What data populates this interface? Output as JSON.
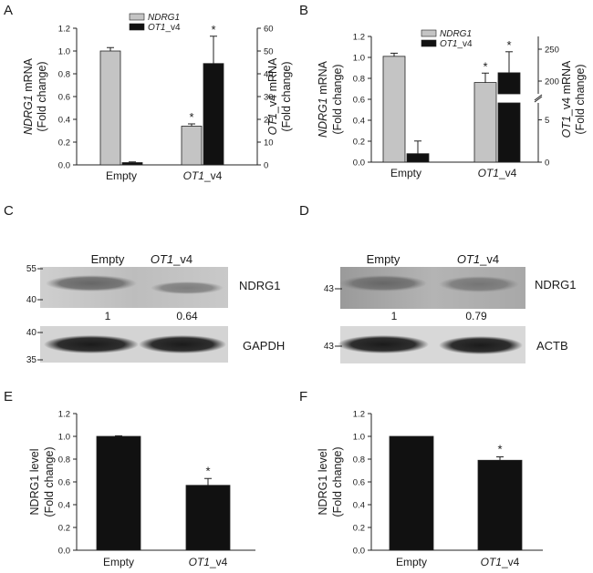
{
  "colors": {
    "light_bar": "#c4c4c4",
    "dark_bar": "#111111",
    "bar_outline": "#222222"
  },
  "panels": {
    "a": {
      "letter": "A"
    },
    "b": {
      "letter": "B"
    },
    "c": {
      "letter": "C",
      "lanes": [
        "Empty",
        "OT1_v4"
      ],
      "lane2_italic": "OT1",
      "lane2_suffix": "_v4",
      "markers_top": [
        "55",
        "40"
      ],
      "markers_bottom": [
        "40",
        "35"
      ],
      "band_top": "NDRG1",
      "band_bottom": "GAPDH",
      "ratios": [
        "1",
        "0.64"
      ]
    },
    "d": {
      "letter": "D",
      "lanes": [
        "Empty",
        "OT1_v4"
      ],
      "lane2_italic": "OT1",
      "lane2_suffix": "_v4",
      "markers_top": [
        "43"
      ],
      "markers_bottom": [
        "43"
      ],
      "band_top": "NDRG1",
      "band_bottom": "ACTB",
      "ratios": [
        "1",
        "0.79"
      ]
    },
    "e": {
      "letter": "E"
    },
    "f": {
      "letter": "F"
    }
  },
  "chart_data": [
    {
      "id": "A",
      "type": "bar",
      "categories": [
        "Empty",
        "OT1_v4"
      ],
      "series": [
        {
          "name": "NDRG1",
          "axis": "left",
          "color": "#c4c4c4",
          "values": [
            1.0,
            0.34
          ],
          "errors": [
            0.03,
            0.02
          ],
          "significant": [
            false,
            true
          ]
        },
        {
          "name": "OT1_v4",
          "axis": "right",
          "color": "#111111",
          "values": [
            1.0,
            44.5
          ],
          "errors": [
            0.3,
            12.0
          ],
          "significant": [
            false,
            true
          ]
        }
      ],
      "ylabel_left": [
        "NDRG1 mRNA",
        "(Fold change)"
      ],
      "ylabel_right": [
        "OT1_v4 mRNA",
        "(Fold change)"
      ],
      "ylim_left": [
        0,
        1.2
      ],
      "yticks_left": [
        "0.0",
        "0.2",
        "0.4",
        "0.6",
        "0.8",
        "1.0",
        "1.2"
      ],
      "ylim_right": [
        0,
        60
      ],
      "yticks_right": [
        "0",
        "10",
        "20",
        "30",
        "40",
        "50",
        "60"
      ],
      "significance_mark": "*",
      "legend": "top"
    },
    {
      "id": "B",
      "type": "bar",
      "categories": [
        "Empty",
        "OT1_v4"
      ],
      "series": [
        {
          "name": "NDRG1",
          "axis": "left",
          "color": "#c4c4c4",
          "values": [
            1.01,
            0.76
          ],
          "errors": [
            0.03,
            0.09
          ],
          "significant": [
            false,
            true
          ]
        },
        {
          "name": "OT1_v4",
          "axis": "right",
          "color": "#111111",
          "values": [
            1.0,
            213
          ],
          "errors": [
            1.5,
            33
          ],
          "significant": [
            false,
            true
          ]
        }
      ],
      "ylabel_left": [
        "NDRG1 mRNA",
        "(Fold change)"
      ],
      "ylabel_right": [
        "OT1_v4 mRNA",
        "(Fold change)"
      ],
      "ylim_left": [
        0,
        1.2
      ],
      "yticks_left": [
        "0.0",
        "0.2",
        "0.4",
        "0.6",
        "0.8",
        "1.0",
        "1.2"
      ],
      "right_axis_broken": true,
      "yticks_right": [
        "0",
        "5",
        "200",
        "250"
      ],
      "significance_mark": "*",
      "legend": "top"
    },
    {
      "id": "E",
      "type": "bar",
      "categories": [
        "Empty",
        "OT1_v4"
      ],
      "values": [
        1.0,
        0.57
      ],
      "errors": [
        0.005,
        0.06
      ],
      "significant": [
        false,
        true
      ],
      "ylabel": [
        "NDRG1 level",
        "(Fold change)"
      ],
      "ylim": [
        0,
        1.2
      ],
      "yticks": [
        "0.0",
        "0.2",
        "0.4",
        "0.6",
        "0.8",
        "1.0",
        "1.2"
      ],
      "significance_mark": "*"
    },
    {
      "id": "F",
      "type": "bar",
      "categories": [
        "Empty",
        "OT1_v4"
      ],
      "values": [
        1.0,
        0.79
      ],
      "errors": [
        0.0,
        0.03
      ],
      "significant": [
        false,
        true
      ],
      "ylabel": [
        "NDRG1 level",
        "(Fold change)"
      ],
      "ylim": [
        0,
        1.2
      ],
      "yticks": [
        "0.0",
        "0.2",
        "0.4",
        "0.6",
        "0.8",
        "1.0",
        "1.2"
      ],
      "significance_mark": "*"
    }
  ]
}
